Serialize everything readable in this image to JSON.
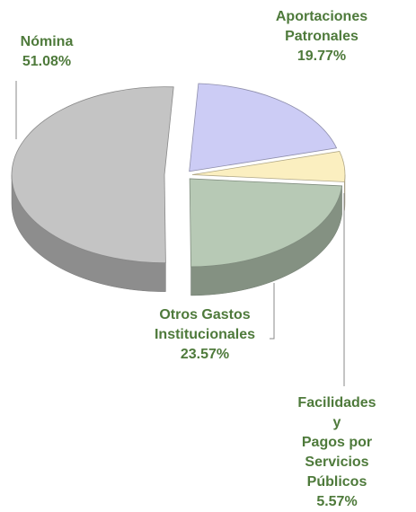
{
  "chart_data": {
    "type": "pie",
    "categories": [
      "Aportaciones\nPatronales",
      "Facilidades y\nPagos por\nServicios Públicos",
      "Otros Gastos\nInstitucionales",
      "Nómina"
    ],
    "values": [
      19.77,
      5.57,
      23.57,
      51.08
    ],
    "value_labels": [
      "19.77%",
      "5.57%",
      "23.57%",
      "51.08%"
    ],
    "colors": [
      "#ccccf5",
      "#fbefc0",
      "#b7c9b5",
      "#c4c4c4"
    ]
  }
}
